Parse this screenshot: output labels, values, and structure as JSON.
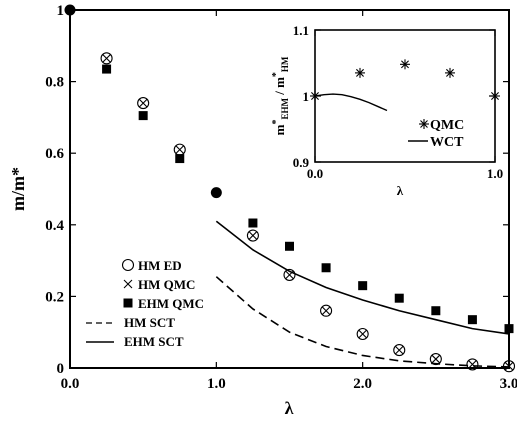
{
  "chart_data": [
    {
      "type": "scatter",
      "xlabel": "λ",
      "ylabel": "m/m*",
      "xlim": [
        0,
        3.0
      ],
      "ylim": [
        0,
        1.0
      ],
      "x_ticks": [
        "0.0",
        "1.0",
        "2.0",
        "3.0"
      ],
      "y_ticks": [
        "0",
        "0.2",
        "0.4",
        "0.6",
        "0.8",
        "1"
      ],
      "legend_position": "bottom-left",
      "series": [
        {
          "name": "HM ED",
          "marker": "open-circle",
          "x": [
            0.25,
            0.5,
            0.75,
            1.25,
            1.5,
            1.75,
            2.0,
            2.25,
            2.5,
            2.75,
            3.0
          ],
          "y": [
            0.865,
            0.74,
            0.61,
            0.37,
            0.26,
            0.16,
            0.095,
            0.05,
            0.025,
            0.01,
            0.005
          ]
        },
        {
          "name": "HM QMC",
          "marker": "x",
          "x": [
            0.25,
            0.5,
            0.75,
            1.25,
            1.5,
            1.75,
            2.0,
            2.25,
            2.5,
            2.75,
            3.0
          ],
          "y": [
            0.865,
            0.74,
            0.61,
            0.37,
            0.26,
            0.16,
            0.095,
            0.05,
            0.025,
            0.01,
            0.005
          ]
        },
        {
          "name": "EHM QMC",
          "marker": "filled-square",
          "x": [
            0.25,
            0.5,
            0.75,
            1.25,
            1.5,
            1.75,
            2.0,
            2.25,
            2.5,
            2.75,
            3.0
          ],
          "y": [
            0.835,
            0.705,
            0.585,
            0.405,
            0.34,
            0.28,
            0.23,
            0.195,
            0.16,
            0.135,
            0.11
          ]
        },
        {
          "name": "HM SCT",
          "style": "dashed",
          "x": [
            1.0,
            1.25,
            1.5,
            1.75,
            2.0,
            2.25,
            2.5,
            2.75,
            3.0
          ],
          "y": [
            0.255,
            0.165,
            0.1,
            0.06,
            0.035,
            0.02,
            0.012,
            0.006,
            0.003
          ]
        },
        {
          "name": "EHM SCT",
          "style": "solid",
          "x": [
            1.0,
            1.25,
            1.5,
            1.75,
            2.0,
            2.25,
            2.5,
            2.75,
            3.0
          ],
          "y": [
            0.41,
            0.33,
            0.27,
            0.225,
            0.19,
            0.16,
            0.135,
            0.11,
            0.095
          ]
        },
        {
          "marker": "filled-circle",
          "x": [
            0.0,
            1.0
          ],
          "y": [
            1.0,
            0.49
          ]
        }
      ]
    },
    {
      "type": "scatter",
      "xlabel": "λ",
      "ylabel": "m*EHM / m*HM",
      "ylabel_main": "m",
      "ylabel_star": "*",
      "ylabel_sub1": "EHM",
      "ylabel_sep": " / m",
      "ylabel_sub2": "HM",
      "xlim": [
        0,
        1.0
      ],
      "ylim": [
        0.9,
        1.1
      ],
      "x_ticks": [
        "0.0",
        "1.0"
      ],
      "y_ticks": [
        "0.9",
        "1",
        "1.1"
      ],
      "legend_position": "bottom-right",
      "series": [
        {
          "name": "QMC",
          "marker": "star",
          "x": [
            0.0,
            0.25,
            0.5,
            0.75,
            1.0
          ],
          "y": [
            1.0,
            1.035,
            1.048,
            1.035,
            1.0
          ]
        },
        {
          "name": "WCT",
          "style": "solid",
          "x": [
            0.0,
            0.05,
            0.1,
            0.15,
            0.2,
            0.25,
            0.3,
            0.35,
            0.4
          ],
          "y": [
            1.0,
            1.002,
            1.003,
            1.002,
            0.999,
            0.995,
            0.99,
            0.984,
            0.978
          ]
        }
      ]
    }
  ]
}
